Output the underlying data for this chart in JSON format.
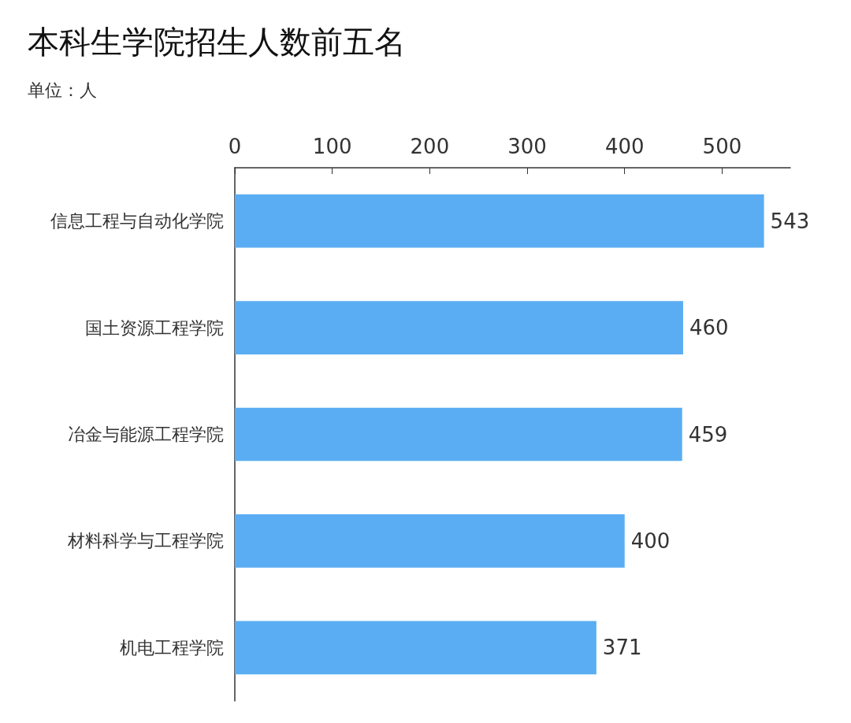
{
  "chart_data": {
    "type": "bar",
    "orientation": "horizontal",
    "title": "本科生学院招生人数前五名",
    "subtitle": "单位：人",
    "categories": [
      "信息工程与自动化学院",
      "国土资源工程学院",
      "冶金与能源工程学院",
      "材料科学与工程学院",
      "机电工程学院"
    ],
    "values": [
      543,
      460,
      459,
      400,
      371
    ],
    "color": "#5aadf2",
    "xlim": [
      0,
      570
    ],
    "xticks": [
      0,
      100,
      200,
      300,
      400,
      500
    ],
    "grid": false,
    "data_labels": true
  }
}
